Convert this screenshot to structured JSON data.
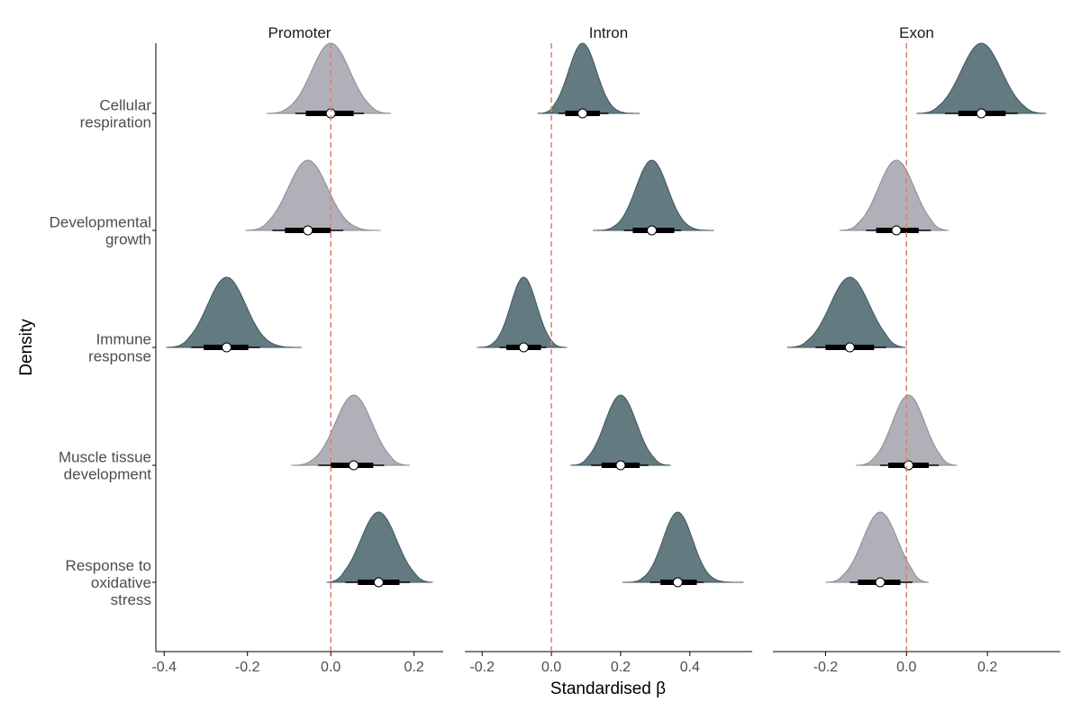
{
  "chart_data": {
    "type": "density",
    "ylabel": "Density",
    "xlabel": "Standardised β",
    "reference_line": 0,
    "categories": [
      "Cellular respiration",
      "Developmental growth",
      "Immune response",
      "Muscle tissue development",
      "Response to oxidative stress"
    ],
    "category_labels": [
      [
        "Cellular",
        "respiration"
      ],
      [
        "Developmental",
        "growth"
      ],
      [
        "Immune",
        "response"
      ],
      [
        "Muscle tissue",
        "development"
      ],
      [
        "Response to",
        "oxidative",
        "stress"
      ]
    ],
    "colors": {
      "significant": "#637a80",
      "non_significant": "#b0b0b8",
      "reference": "#d9826a"
    },
    "facets": [
      {
        "name": "Promoter",
        "xlim": [
          -0.42,
          0.27
        ],
        "ticks": [
          -0.4,
          -0.2,
          0.0,
          0.2
        ],
        "tick_labels": [
          "-0.4",
          "-0.2",
          "0.0",
          "0.2"
        ],
        "distributions": [
          {
            "category": "Cellular respiration",
            "median": 0.0,
            "ci66": [
              -0.06,
              0.055
            ],
            "ci95": [
              -0.085,
              0.08
            ],
            "range": [
              -0.155,
              0.145
            ],
            "significant": false
          },
          {
            "category": "Developmental growth",
            "median": -0.055,
            "ci66": [
              -0.11,
              0.0
            ],
            "ci95": [
              -0.14,
              0.03
            ],
            "range": [
              -0.205,
              0.12
            ],
            "significant": false
          },
          {
            "category": "Immune response",
            "median": -0.25,
            "ci66": [
              -0.305,
              -0.198
            ],
            "ci95": [
              -0.335,
              -0.17
            ],
            "range": [
              -0.395,
              -0.07
            ],
            "significant": true
          },
          {
            "category": "Muscle tissue development",
            "median": 0.055,
            "ci66": [
              0.0,
              0.102
            ],
            "ci95": [
              -0.03,
              0.128
            ],
            "range": [
              -0.095,
              0.19
            ],
            "significant": false
          },
          {
            "category": "Response to oxidative stress",
            "median": 0.115,
            "ci66": [
              0.065,
              0.165
            ],
            "ci95": [
              0.035,
              0.19
            ],
            "range": [
              -0.01,
              0.245
            ],
            "significant": true
          }
        ]
      },
      {
        "name": "Intron",
        "xlim": [
          -0.25,
          0.58
        ],
        "ticks": [
          -0.2,
          0.0,
          0.2,
          0.4
        ],
        "tick_labels": [
          "-0.2",
          "0.0",
          "0.2",
          "0.4"
        ],
        "distributions": [
          {
            "category": "Cellular respiration",
            "median": 0.09,
            "ci66": [
              0.04,
              0.14
            ],
            "ci95": [
              0.02,
              0.165
            ],
            "range": [
              -0.04,
              0.255
            ],
            "significant": true
          },
          {
            "category": "Developmental growth",
            "median": 0.29,
            "ci66": [
              0.235,
              0.355
            ],
            "ci95": [
              0.21,
              0.375
            ],
            "range": [
              0.12,
              0.47
            ],
            "significant": true
          },
          {
            "category": "Immune response",
            "median": -0.08,
            "ci66": [
              -0.13,
              -0.03
            ],
            "ci95": [
              -0.15,
              -0.015
            ],
            "range": [
              -0.215,
              0.045
            ],
            "significant": true
          },
          {
            "category": "Muscle tissue development",
            "median": 0.2,
            "ci66": [
              0.145,
              0.255
            ],
            "ci95": [
              0.115,
              0.28
            ],
            "range": [
              0.055,
              0.345
            ],
            "significant": true
          },
          {
            "category": "Response to oxidative stress",
            "median": 0.365,
            "ci66": [
              0.315,
              0.42
            ],
            "ci95": [
              0.285,
              0.44
            ],
            "range": [
              0.205,
              0.555
            ],
            "significant": true
          }
        ]
      },
      {
        "name": "Exon",
        "xlim": [
          -0.33,
          0.38
        ],
        "ticks": [
          -0.2,
          0.0,
          0.2
        ],
        "tick_labels": [
          "-0.2",
          "0.0",
          "0.2"
        ],
        "distributions": [
          {
            "category": "Cellular respiration",
            "median": 0.185,
            "ci66": [
              0.128,
              0.245
            ],
            "ci95": [
              0.095,
              0.275
            ],
            "range": [
              0.025,
              0.345
            ],
            "significant": true
          },
          {
            "category": "Developmental growth",
            "median": -0.025,
            "ci66": [
              -0.075,
              0.03
            ],
            "ci95": [
              -0.1,
              0.06
            ],
            "range": [
              -0.165,
              0.105
            ],
            "significant": false
          },
          {
            "category": "Immune response",
            "median": -0.14,
            "ci66": [
              -0.2,
              -0.08
            ],
            "ci95": [
              -0.225,
              -0.05
            ],
            "range": [
              -0.295,
              0.0
            ],
            "significant": true
          },
          {
            "category": "Muscle tissue development",
            "median": 0.005,
            "ci66": [
              -0.045,
              0.055
            ],
            "ci95": [
              -0.065,
              0.08
            ],
            "range": [
              -0.125,
              0.125
            ],
            "significant": false
          },
          {
            "category": "Response to oxidative stress",
            "median": -0.065,
            "ci66": [
              -0.12,
              -0.015
            ],
            "ci95": [
              -0.14,
              0.015
            ],
            "range": [
              -0.2,
              0.055
            ],
            "significant": false
          }
        ]
      }
    ]
  }
}
